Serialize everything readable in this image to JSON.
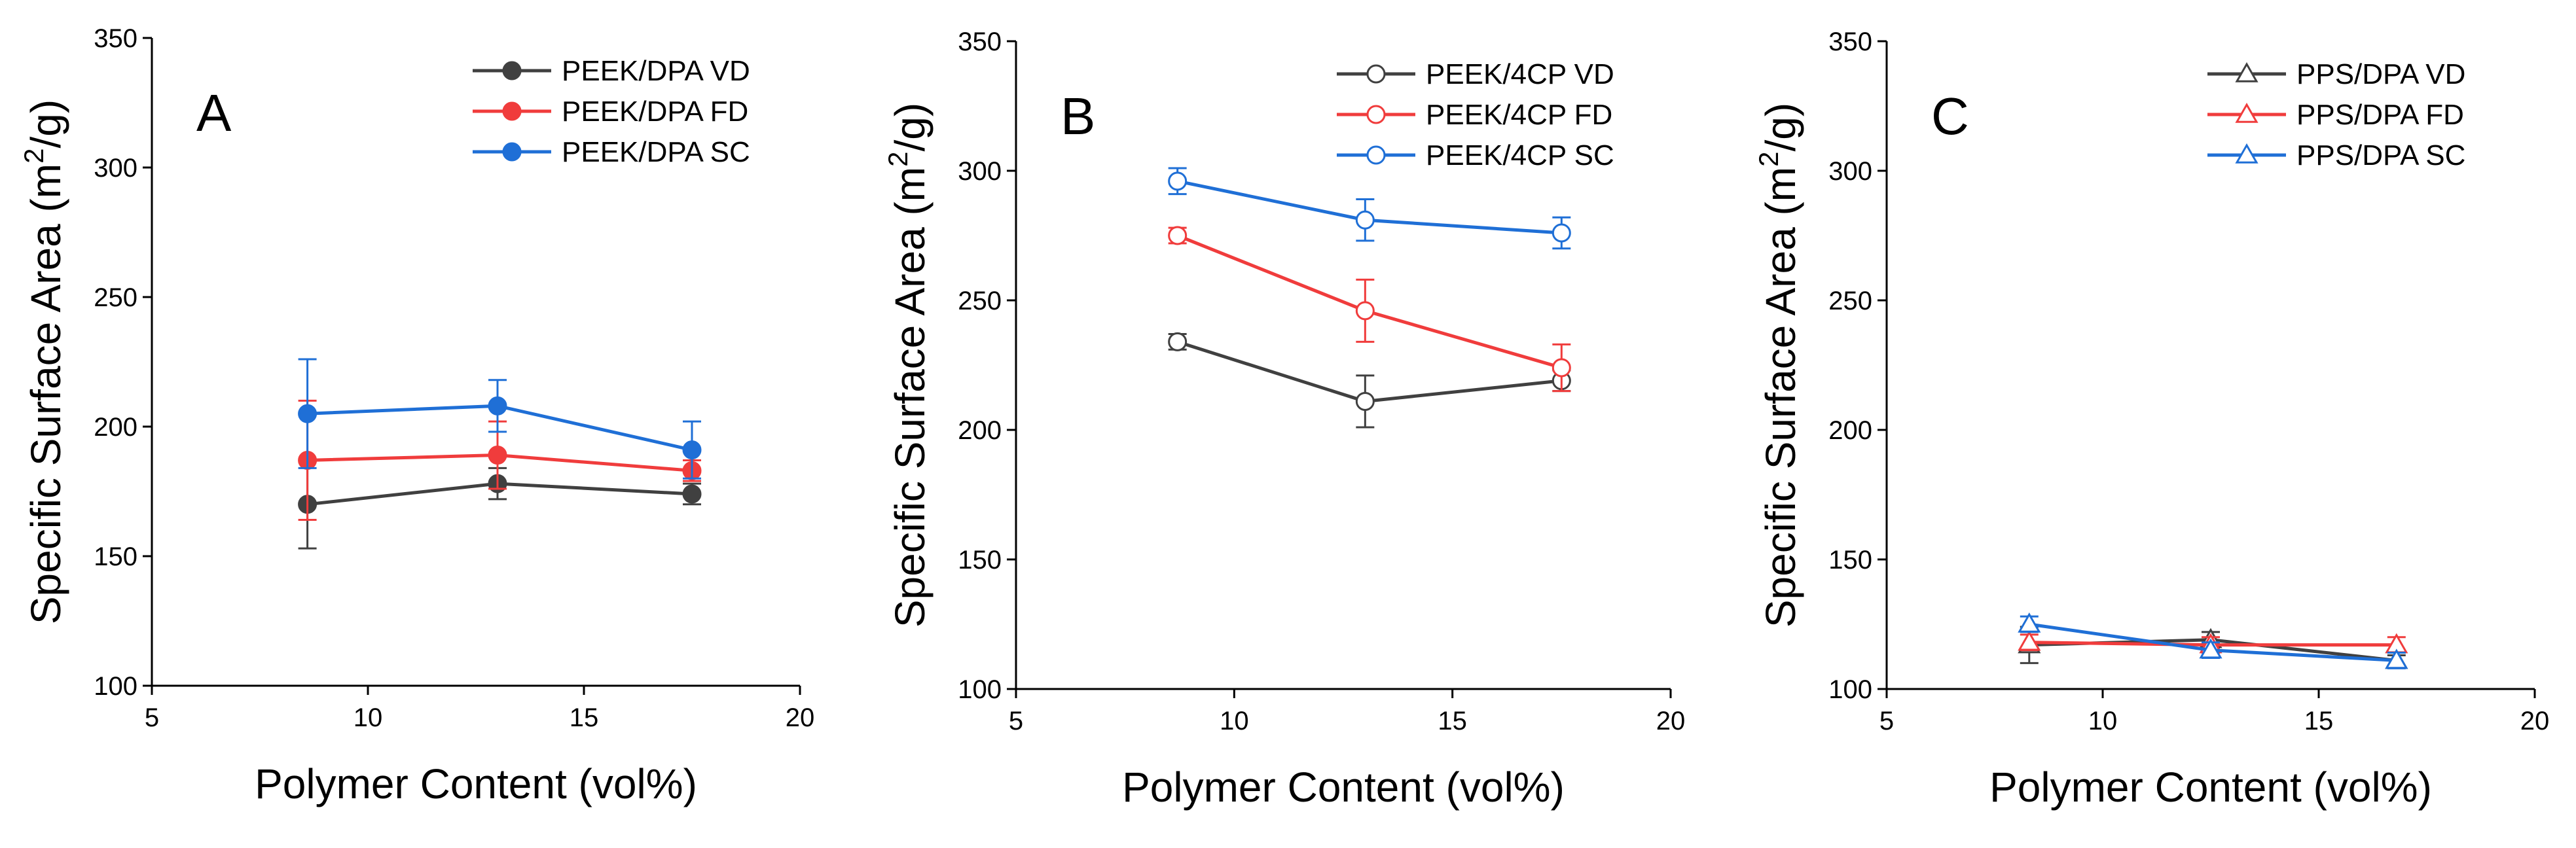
{
  "chart_data": [
    {
      "type": "line",
      "panel_label": "A",
      "xlabel": "Polymer Content (vol%)",
      "ylabel": "Specific Surface Area (m²/g)",
      "ylabel_base": "Specific Surface Area (m",
      "ylabel_sup": "2",
      "ylabel_tail": "/g)",
      "xlim": [
        5,
        20
      ],
      "ylim": [
        100,
        350
      ],
      "xticks": [
        "5",
        "10",
        "15",
        "20"
      ],
      "yticks": [
        "100",
        "150",
        "200",
        "250",
        "300",
        "350"
      ],
      "marker": "circle",
      "filled": true,
      "legend_position": "top-right",
      "series": [
        {
          "name": "PEEK/DPA VD",
          "color": "#404040",
          "x": [
            8.6,
            13.0,
            17.5
          ],
          "values": [
            170,
            178,
            174
          ],
          "errors": [
            17,
            6,
            4
          ]
        },
        {
          "name": "PEEK/DPA FD",
          "color": "#f03c3c",
          "x": [
            8.6,
            13.0,
            17.5
          ],
          "values": [
            187,
            189,
            183
          ],
          "errors": [
            23,
            13,
            4
          ]
        },
        {
          "name": "PEEK/DPA SC",
          "color": "#1f6fd6",
          "x": [
            8.6,
            13.0,
            17.5
          ],
          "values": [
            205,
            208,
            191
          ],
          "errors": [
            21,
            10,
            11
          ]
        }
      ]
    },
    {
      "type": "line",
      "panel_label": "B",
      "xlabel": "Polymer Content (vol%)",
      "ylabel": "Specific Surface Area (m²/g)",
      "ylabel_base": "Specific Surface Area (m",
      "ylabel_sup": "2",
      "ylabel_tail": "/g)",
      "xlim": [
        5,
        20
      ],
      "ylim": [
        100,
        350
      ],
      "xticks": [
        "5",
        "10",
        "15",
        "20"
      ],
      "yticks": [
        "100",
        "150",
        "200",
        "250",
        "300",
        "350"
      ],
      "marker": "circle",
      "filled": false,
      "legend_position": "top-right",
      "series": [
        {
          "name": "PEEK/4CP VD",
          "color": "#404040",
          "x": [
            8.7,
            13.0,
            17.5
          ],
          "values": [
            234,
            211,
            219
          ],
          "errors": [
            3,
            10,
            4
          ]
        },
        {
          "name": "PEEK/4CP FD",
          "color": "#f03c3c",
          "x": [
            8.7,
            13.0,
            17.5
          ],
          "values": [
            275,
            246,
            224
          ],
          "errors": [
            3,
            12,
            9
          ]
        },
        {
          "name": "PEEK/4CP SC",
          "color": "#1f6fd6",
          "x": [
            8.7,
            13.0,
            17.5
          ],
          "values": [
            296,
            281,
            276
          ],
          "errors": [
            5,
            8,
            6
          ]
        }
      ]
    },
    {
      "type": "line",
      "panel_label": "C",
      "xlabel": "Polymer Content (vol%)",
      "ylabel": "Specific Surface Area (m²/g)",
      "ylabel_base": "Specific Surface Area (m",
      "ylabel_sup": "2",
      "ylabel_tail": "/g)",
      "xlim": [
        5,
        20
      ],
      "ylim": [
        100,
        350
      ],
      "xticks": [
        "5",
        "10",
        "15",
        "20"
      ],
      "yticks": [
        "100",
        "150",
        "200",
        "250",
        "300",
        "350"
      ],
      "marker": "triangle",
      "filled": false,
      "legend_position": "top-right",
      "series": [
        {
          "name": "PPS/DPA VD",
          "color": "#404040",
          "x": [
            8.3,
            12.5,
            16.8
          ],
          "values": [
            117,
            119,
            111
          ],
          "errors": [
            7,
            3,
            2
          ]
        },
        {
          "name": "PPS/DPA FD",
          "color": "#f03c3c",
          "x": [
            8.3,
            12.5,
            16.8
          ],
          "values": [
            118,
            117,
            117
          ],
          "errors": [
            3,
            3,
            3
          ]
        },
        {
          "name": "PPS/DPA SC",
          "color": "#1f6fd6",
          "x": [
            8.3,
            12.5,
            16.8
          ],
          "values": [
            125,
            115,
            111
          ],
          "errors": [
            3,
            3,
            3
          ]
        }
      ]
    }
  ]
}
